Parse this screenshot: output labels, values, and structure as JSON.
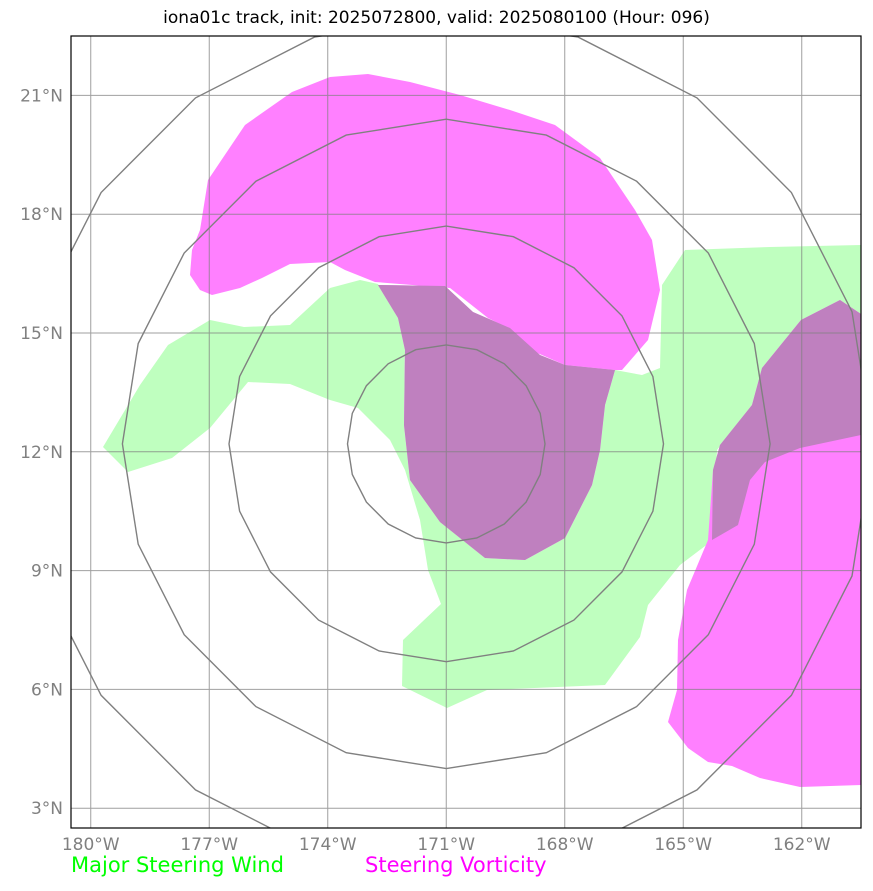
{
  "title": "iona01c track, init: 2025072800, valid: 2025080100 (Hour: 096)",
  "map": {
    "lon_range": [
      -180.5,
      -160.5
    ],
    "lat_range": [
      2.5,
      22.5
    ],
    "lon_ticks": [
      "180°W",
      "177°W",
      "174°W",
      "171°W",
      "168°W",
      "165°W",
      "162°W"
    ],
    "lat_ticks": [
      "3°N",
      "6°N",
      "9°N",
      "12°N",
      "15°N",
      "18°N",
      "21°N"
    ],
    "range_rings": {
      "center": {
        "lon": -171.0,
        "lat": 12.2
      },
      "radii_deg": [
        2.5,
        5.5,
        8.2,
        10.8
      ],
      "color": "#808080"
    },
    "layers": {
      "major_steering_wind": {
        "color": "#bfffbf"
      },
      "steering_vorticity": {
        "color": "#ff80ff"
      },
      "overlap": {
        "color": "#bf80bf"
      }
    }
  },
  "legend": {
    "wind": {
      "label": "Major Steering Wind",
      "color": "#00ff00"
    },
    "vorticity": {
      "label": "Steering Vorticity",
      "color": "#ff00ff"
    }
  }
}
